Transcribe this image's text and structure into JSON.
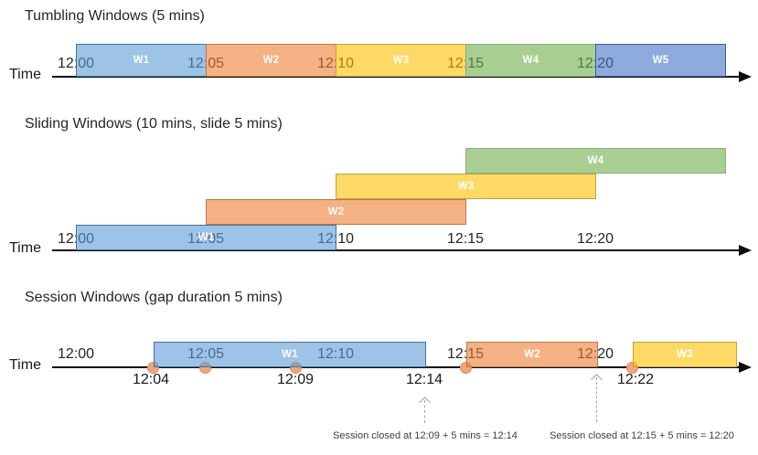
{
  "palette": {
    "bar_blue": "#9CC3E6",
    "bar_orange": "#F4B183",
    "bar_yellow": "#FFD966",
    "bar_green": "#A9D18E",
    "bar_periwinkle": "#8FAADC",
    "bar_border_blue": "#41719C",
    "axis_black": "#0D0D0D",
    "event_dot": "#F2A47E",
    "annotation_gray": "#A3A3A3",
    "text_dark": "#262626",
    "window_label_white": "#FFFFFF"
  },
  "tumbling": {
    "title": "Tumbling Windows (5 mins)",
    "axis_label": "Time",
    "ticks": [
      "12:00",
      "12:05",
      "12:10",
      "12:15",
      "12:20"
    ],
    "windows": [
      "W1",
      "W2",
      "W3",
      "W4",
      "W5"
    ]
  },
  "sliding": {
    "title": "Sliding Windows (10 mins, slide 5 mins)",
    "axis_label": "Time",
    "ticks": [
      "12:00",
      "12:05",
      "12:10",
      "12:15",
      "12:20"
    ],
    "windows": [
      "W1",
      "W2",
      "W3",
      "W4"
    ]
  },
  "session": {
    "title": "Session Windows (gap duration 5 mins)",
    "axis_label": "Time",
    "ticks": [
      "12:00",
      "12:05",
      "12:10",
      "12:15",
      "12:20"
    ],
    "windows": [
      "W1",
      "W2",
      "W3"
    ],
    "event_times": [
      "12:04",
      "12:09",
      "12:14",
      "12:22"
    ],
    "annotations": [
      "Session closed at 12:09 + 5 mins = 12:14",
      "Session closed at 12:15 + 5 mins = 12:20"
    ]
  }
}
